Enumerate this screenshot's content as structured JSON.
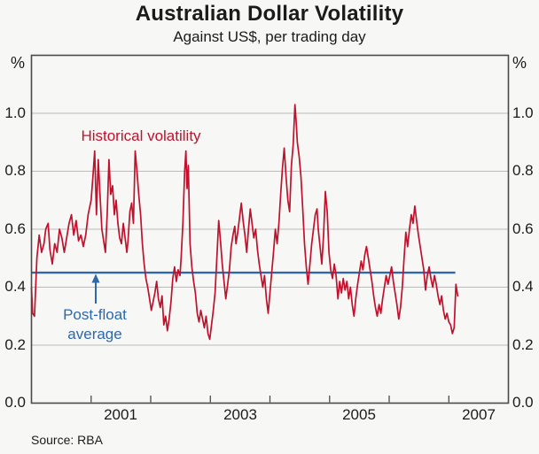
{
  "header": {
    "title": "Australian Dollar Volatility",
    "subtitle": "Against US$, per trading day"
  },
  "footer": {
    "source": "Source: RBA"
  },
  "annotations": {
    "series_label": "Historical volatility",
    "avg_label_line1": "Post-float",
    "avg_label_line2": "average"
  },
  "colors": {
    "series": "#c1112c",
    "average": "#2e68a8",
    "grid": "#bbbbbb",
    "frame": "#4a4a4a",
    "text": "#1b1b1b",
    "background": "#f7f7f5"
  },
  "axes": {
    "unit_left": "%",
    "unit_right": "%",
    "y_ticks_left": [
      "1.0",
      "0.8",
      "0.6",
      "0.4",
      "0.2",
      "0.0"
    ],
    "y_ticks_right": [
      "1.0",
      "0.8",
      "0.6",
      "0.4",
      "0.2",
      "0.0"
    ],
    "x_tick_labels": [
      "2001",
      "2003",
      "2005",
      "2007"
    ]
  },
  "chart_data": {
    "type": "line",
    "title": "Australian Dollar Volatility",
    "subtitle": "Against US$, per trading day",
    "y_unit": "%",
    "xlim": [
      2000,
      2008
    ],
    "ylim": [
      0,
      1.2
    ],
    "y_tick_values": [
      0,
      0.2,
      0.4,
      0.6,
      0.8,
      1.0
    ],
    "x_tick_years": [
      2001,
      2002,
      2003,
      2004,
      2005,
      2006,
      2007
    ],
    "grid": true,
    "legend_position": "in-plot annotations",
    "series": [
      {
        "name": "Historical volatility",
        "type": "line",
        "color": "#c1112c",
        "points": [
          [
            2000.0,
            0.4
          ],
          [
            2000.02,
            0.31
          ],
          [
            2000.05,
            0.3
          ],
          [
            2000.09,
            0.5
          ],
          [
            2000.13,
            0.58
          ],
          [
            2000.17,
            0.52
          ],
          [
            2000.21,
            0.55
          ],
          [
            2000.24,
            0.6
          ],
          [
            2000.28,
            0.62
          ],
          [
            2000.31,
            0.53
          ],
          [
            2000.35,
            0.48
          ],
          [
            2000.39,
            0.55
          ],
          [
            2000.43,
            0.52
          ],
          [
            2000.47,
            0.6
          ],
          [
            2000.51,
            0.57
          ],
          [
            2000.55,
            0.52
          ],
          [
            2000.59,
            0.57
          ],
          [
            2000.63,
            0.62
          ],
          [
            2000.67,
            0.65
          ],
          [
            2000.71,
            0.58
          ],
          [
            2000.75,
            0.63
          ],
          [
            2000.79,
            0.56
          ],
          [
            2000.83,
            0.58
          ],
          [
            2000.87,
            0.54
          ],
          [
            2000.91,
            0.58
          ],
          [
            2000.95,
            0.65
          ],
          [
            2001.0,
            0.7
          ],
          [
            2001.03,
            0.78
          ],
          [
            2001.06,
            0.87
          ],
          [
            2001.09,
            0.65
          ],
          [
            2001.12,
            0.84
          ],
          [
            2001.15,
            0.72
          ],
          [
            2001.18,
            0.6
          ],
          [
            2001.21,
            0.56
          ],
          [
            2001.24,
            0.52
          ],
          [
            2001.27,
            0.65
          ],
          [
            2001.3,
            0.84
          ],
          [
            2001.33,
            0.72
          ],
          [
            2001.36,
            0.75
          ],
          [
            2001.39,
            0.65
          ],
          [
            2001.42,
            0.7
          ],
          [
            2001.45,
            0.62
          ],
          [
            2001.48,
            0.57
          ],
          [
            2001.51,
            0.55
          ],
          [
            2001.54,
            0.62
          ],
          [
            2001.57,
            0.57
          ],
          [
            2001.6,
            0.52
          ],
          [
            2001.62,
            0.56
          ],
          [
            2001.65,
            0.66
          ],
          [
            2001.68,
            0.69
          ],
          [
            2001.71,
            0.62
          ],
          [
            2001.74,
            0.87
          ],
          [
            2001.77,
            0.8
          ],
          [
            2001.8,
            0.72
          ],
          [
            2001.83,
            0.65
          ],
          [
            2001.86,
            0.55
          ],
          [
            2001.89,
            0.48
          ],
          [
            2001.92,
            0.43
          ],
          [
            2001.95,
            0.4
          ],
          [
            2001.98,
            0.36
          ],
          [
            2002.01,
            0.32
          ],
          [
            2002.04,
            0.35
          ],
          [
            2002.07,
            0.38
          ],
          [
            2002.1,
            0.42
          ],
          [
            2002.13,
            0.36
          ],
          [
            2002.16,
            0.33
          ],
          [
            2002.19,
            0.37
          ],
          [
            2002.22,
            0.27
          ],
          [
            2002.25,
            0.3
          ],
          [
            2002.28,
            0.25
          ],
          [
            2002.31,
            0.29
          ],
          [
            2002.34,
            0.35
          ],
          [
            2002.37,
            0.43
          ],
          [
            2002.4,
            0.47
          ],
          [
            2002.43,
            0.42
          ],
          [
            2002.46,
            0.46
          ],
          [
            2002.49,
            0.44
          ],
          [
            2002.51,
            0.5
          ],
          [
            2002.54,
            0.62
          ],
          [
            2002.57,
            0.8
          ],
          [
            2002.59,
            0.87
          ],
          [
            2002.61,
            0.74
          ],
          [
            2002.63,
            0.82
          ],
          [
            2002.66,
            0.55
          ],
          [
            2002.69,
            0.47
          ],
          [
            2002.72,
            0.42
          ],
          [
            2002.75,
            0.38
          ],
          [
            2002.78,
            0.31
          ],
          [
            2002.81,
            0.28
          ],
          [
            2002.84,
            0.32
          ],
          [
            2002.87,
            0.29
          ],
          [
            2002.9,
            0.26
          ],
          [
            2002.93,
            0.3
          ],
          [
            2002.96,
            0.24
          ],
          [
            2002.99,
            0.22
          ],
          [
            2003.02,
            0.27
          ],
          [
            2003.05,
            0.32
          ],
          [
            2003.08,
            0.38
          ],
          [
            2003.11,
            0.5
          ],
          [
            2003.14,
            0.63
          ],
          [
            2003.17,
            0.56
          ],
          [
            2003.2,
            0.48
          ],
          [
            2003.23,
            0.42
          ],
          [
            2003.26,
            0.36
          ],
          [
            2003.29,
            0.41
          ],
          [
            2003.32,
            0.46
          ],
          [
            2003.35,
            0.54
          ],
          [
            2003.38,
            0.58
          ],
          [
            2003.41,
            0.61
          ],
          [
            2003.43,
            0.55
          ],
          [
            2003.46,
            0.59
          ],
          [
            2003.49,
            0.64
          ],
          [
            2003.52,
            0.69
          ],
          [
            2003.55,
            0.63
          ],
          [
            2003.58,
            0.58
          ],
          [
            2003.61,
            0.52
          ],
          [
            2003.64,
            0.6
          ],
          [
            2003.67,
            0.67
          ],
          [
            2003.7,
            0.62
          ],
          [
            2003.73,
            0.57
          ],
          [
            2003.76,
            0.6
          ],
          [
            2003.79,
            0.53
          ],
          [
            2003.82,
            0.48
          ],
          [
            2003.85,
            0.44
          ],
          [
            2003.88,
            0.4
          ],
          [
            2003.91,
            0.44
          ],
          [
            2003.94,
            0.36
          ],
          [
            2003.97,
            0.31
          ],
          [
            2004.0,
            0.38
          ],
          [
            2004.03,
            0.45
          ],
          [
            2004.06,
            0.52
          ],
          [
            2004.09,
            0.6
          ],
          [
            2004.12,
            0.55
          ],
          [
            2004.15,
            0.62
          ],
          [
            2004.18,
            0.72
          ],
          [
            2004.21,
            0.81
          ],
          [
            2004.24,
            0.88
          ],
          [
            2004.27,
            0.78
          ],
          [
            2004.3,
            0.7
          ],
          [
            2004.33,
            0.66
          ],
          [
            2004.36,
            0.82
          ],
          [
            2004.39,
            0.89
          ],
          [
            2004.42,
            1.03
          ],
          [
            2004.44,
            0.97
          ],
          [
            2004.46,
            0.9
          ],
          [
            2004.49,
            0.85
          ],
          [
            2004.52,
            0.78
          ],
          [
            2004.55,
            0.67
          ],
          [
            2004.58,
            0.55
          ],
          [
            2004.61,
            0.47
          ],
          [
            2004.64,
            0.41
          ],
          [
            2004.67,
            0.48
          ],
          [
            2004.7,
            0.55
          ],
          [
            2004.73,
            0.6
          ],
          [
            2004.76,
            0.65
          ],
          [
            2004.79,
            0.67
          ],
          [
            2004.81,
            0.6
          ],
          [
            2004.84,
            0.54
          ],
          [
            2004.87,
            0.48
          ],
          [
            2004.9,
            0.58
          ],
          [
            2004.93,
            0.73
          ],
          [
            2004.96,
            0.66
          ],
          [
            2004.99,
            0.52
          ],
          [
            2005.02,
            0.46
          ],
          [
            2005.05,
            0.43
          ],
          [
            2005.08,
            0.48
          ],
          [
            2005.11,
            0.44
          ],
          [
            2005.14,
            0.36
          ],
          [
            2005.17,
            0.42
          ],
          [
            2005.2,
            0.38
          ],
          [
            2005.23,
            0.43
          ],
          [
            2005.26,
            0.39
          ],
          [
            2005.29,
            0.42
          ],
          [
            2005.32,
            0.36
          ],
          [
            2005.35,
            0.4
          ],
          [
            2005.38,
            0.34
          ],
          [
            2005.41,
            0.3
          ],
          [
            2005.44,
            0.36
          ],
          [
            2005.47,
            0.41
          ],
          [
            2005.5,
            0.45
          ],
          [
            2005.53,
            0.49
          ],
          [
            2005.56,
            0.46
          ],
          [
            2005.59,
            0.51
          ],
          [
            2005.62,
            0.54
          ],
          [
            2005.65,
            0.5
          ],
          [
            2005.68,
            0.46
          ],
          [
            2005.71,
            0.42
          ],
          [
            2005.74,
            0.37
          ],
          [
            2005.77,
            0.33
          ],
          [
            2005.8,
            0.3
          ],
          [
            2005.83,
            0.34
          ],
          [
            2005.86,
            0.31
          ],
          [
            2005.89,
            0.36
          ],
          [
            2005.92,
            0.4
          ],
          [
            2005.95,
            0.44
          ],
          [
            2005.98,
            0.41
          ],
          [
            2006.01,
            0.44
          ],
          [
            2006.04,
            0.47
          ],
          [
            2006.07,
            0.42
          ],
          [
            2006.1,
            0.38
          ],
          [
            2006.13,
            0.34
          ],
          [
            2006.16,
            0.29
          ],
          [
            2006.19,
            0.33
          ],
          [
            2006.22,
            0.4
          ],
          [
            2006.25,
            0.5
          ],
          [
            2006.28,
            0.59
          ],
          [
            2006.31,
            0.54
          ],
          [
            2006.34,
            0.6
          ],
          [
            2006.37,
            0.65
          ],
          [
            2006.4,
            0.62
          ],
          [
            2006.43,
            0.68
          ],
          [
            2006.46,
            0.63
          ],
          [
            2006.49,
            0.58
          ],
          [
            2006.52,
            0.54
          ],
          [
            2006.55,
            0.5
          ],
          [
            2006.58,
            0.46
          ],
          [
            2006.61,
            0.39
          ],
          [
            2006.64,
            0.44
          ],
          [
            2006.67,
            0.47
          ],
          [
            2006.7,
            0.43
          ],
          [
            2006.73,
            0.4
          ],
          [
            2006.76,
            0.44
          ],
          [
            2006.79,
            0.41
          ],
          [
            2006.82,
            0.37
          ],
          [
            2006.85,
            0.34
          ],
          [
            2006.88,
            0.37
          ],
          [
            2006.91,
            0.32
          ],
          [
            2006.94,
            0.29
          ],
          [
            2006.97,
            0.31
          ],
          [
            2007.0,
            0.28
          ],
          [
            2007.03,
            0.27
          ],
          [
            2007.06,
            0.24
          ],
          [
            2007.09,
            0.26
          ],
          [
            2007.12,
            0.41
          ],
          [
            2007.15,
            0.37
          ]
        ]
      },
      {
        "name": "Post-float average",
        "type": "hline",
        "color": "#2e68a8",
        "value": 0.45,
        "x_start": 2000.0,
        "x_end": 2007.11
      }
    ]
  }
}
